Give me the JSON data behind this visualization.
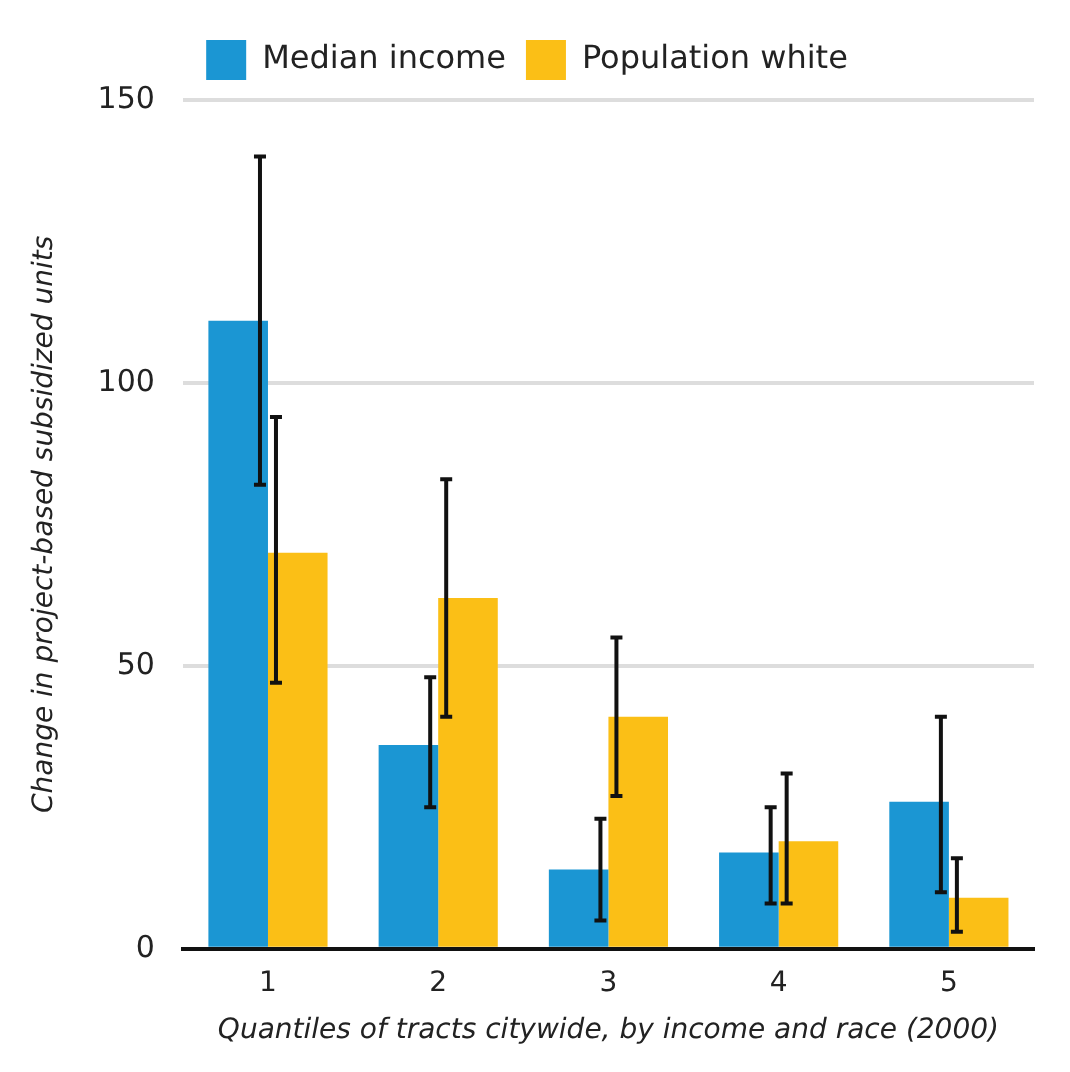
{
  "chart_data": {
    "type": "bar",
    "xlabel": "Quantiles of tracts citywide, by income and race (2000)",
    "ylabel": "Change in project-based subsidized units",
    "categories": [
      "1",
      "2",
      "3",
      "4",
      "5"
    ],
    "series": [
      {
        "name": "Median income",
        "color": "#1b96d3",
        "values": [
          111,
          36,
          14,
          17,
          26
        ],
        "errors": [
          [
            82,
            140
          ],
          [
            25,
            48
          ],
          [
            5,
            23
          ],
          [
            8,
            25
          ],
          [
            10,
            41
          ]
        ]
      },
      {
        "name": "Population white",
        "color": "#fbbf16",
        "values": [
          70,
          62,
          41,
          19,
          9
        ],
        "errors": [
          [
            47,
            94
          ],
          [
            41,
            83
          ],
          [
            27,
            55
          ],
          [
            8,
            31
          ],
          [
            3,
            16
          ]
        ]
      }
    ],
    "ylim": [
      0,
      150
    ],
    "yticks": [
      0,
      50,
      100,
      150
    ],
    "grid": "y",
    "legend": "top"
  }
}
